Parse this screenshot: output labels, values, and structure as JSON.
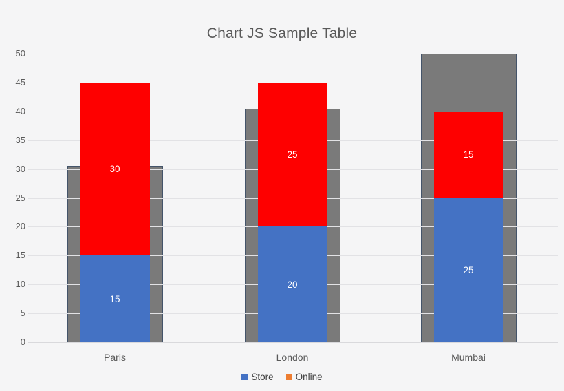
{
  "chart_data": {
    "type": "bar",
    "stacked": true,
    "title": "Chart JS Sample Table",
    "categories": [
      "Paris",
      "London",
      "Mumbai"
    ],
    "series": [
      {
        "name": "Store",
        "color": "#4472c4",
        "values": [
          15,
          20,
          25
        ]
      },
      {
        "name": "Online-red-segment",
        "color": "#fe0000",
        "values": [
          30,
          25,
          15
        ]
      }
    ],
    "background_series": {
      "name": "gray-backdrop-bars",
      "color": "#7a7a7a",
      "border_color": "#44546a",
      "values": [
        30.5,
        40.5,
        50
      ]
    },
    "bar_value_labels": {
      "Paris": [
        "15",
        "30"
      ],
      "London": [
        "20",
        "25"
      ],
      "Mumbai": [
        "25",
        "15"
      ]
    },
    "ylim": [
      0,
      50
    ],
    "yticks": [
      0,
      5,
      10,
      15,
      20,
      25,
      30,
      35,
      40,
      45,
      50
    ],
    "grid": true,
    "xlabel": "",
    "ylabel": "",
    "legend": {
      "position": "bottom",
      "entries": [
        {
          "label": "Store",
          "color": "#4472c4"
        },
        {
          "label": "Online",
          "color": "#ed7d31"
        }
      ]
    },
    "colors": {
      "background": "#f5f5f6",
      "gridline": "#e2e2e5",
      "axis_text": "#595959",
      "bar_label_text": "#ffffff",
      "legend_text": "#404040"
    }
  }
}
